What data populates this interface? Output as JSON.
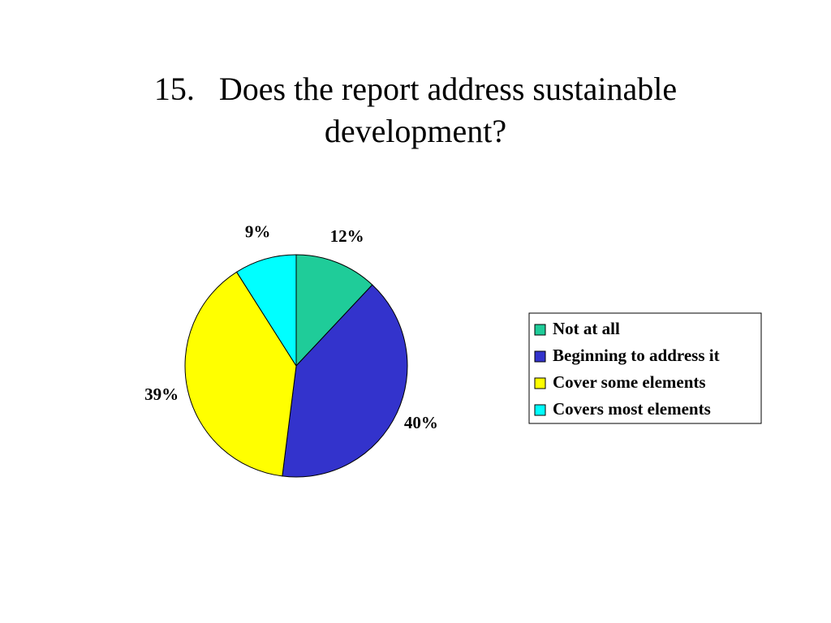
{
  "chart_data": {
    "type": "pie",
    "title": "15.   Does the report address sustainable development?",
    "categories": [
      "Not at all",
      "Beginning to address it",
      "Cover some elements",
      "Covers most elements"
    ],
    "values": [
      12,
      40,
      39,
      9
    ],
    "value_labels": [
      "12%",
      "40%",
      "39%",
      "9%"
    ],
    "colors": [
      "#1fcc99",
      "#3333cc",
      "#ffff00",
      "#00ffff"
    ],
    "legend": "right"
  }
}
